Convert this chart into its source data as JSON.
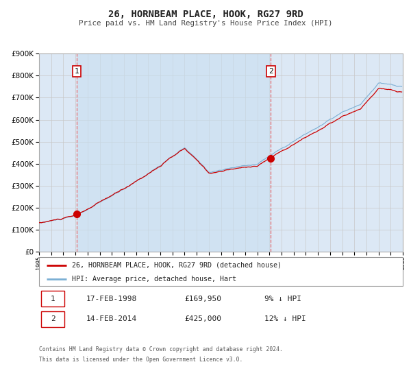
{
  "title": "26, HORNBEAM PLACE, HOOK, RG27 9RD",
  "subtitle": "Price paid vs. HM Land Registry's House Price Index (HPI)",
  "sale1_date": "17-FEB-1998",
  "sale1_price": 169950,
  "sale1_label": "9% ↓ HPI",
  "sale2_date": "14-FEB-2014",
  "sale2_price": 425000,
  "sale2_label": "12% ↓ HPI",
  "sale1_year": 1998.12,
  "sale2_year": 2014.12,
  "legend1": "26, HORNBEAM PLACE, HOOK, RG27 9RD (detached house)",
  "legend2": "HPI: Average price, detached house, Hart",
  "footnote1": "Contains HM Land Registry data © Crown copyright and database right 2024.",
  "footnote2": "This data is licensed under the Open Government Licence v3.0.",
  "ymin": 0,
  "ymax": 900000,
  "xmin": 1995,
  "xmax": 2025,
  "red_color": "#cc0000",
  "blue_color": "#7bafd4",
  "fill_color": "#dce8f5",
  "vline_color": "#e87070",
  "bg_color": "#ffffff",
  "grid_color": "#c8c8c8"
}
